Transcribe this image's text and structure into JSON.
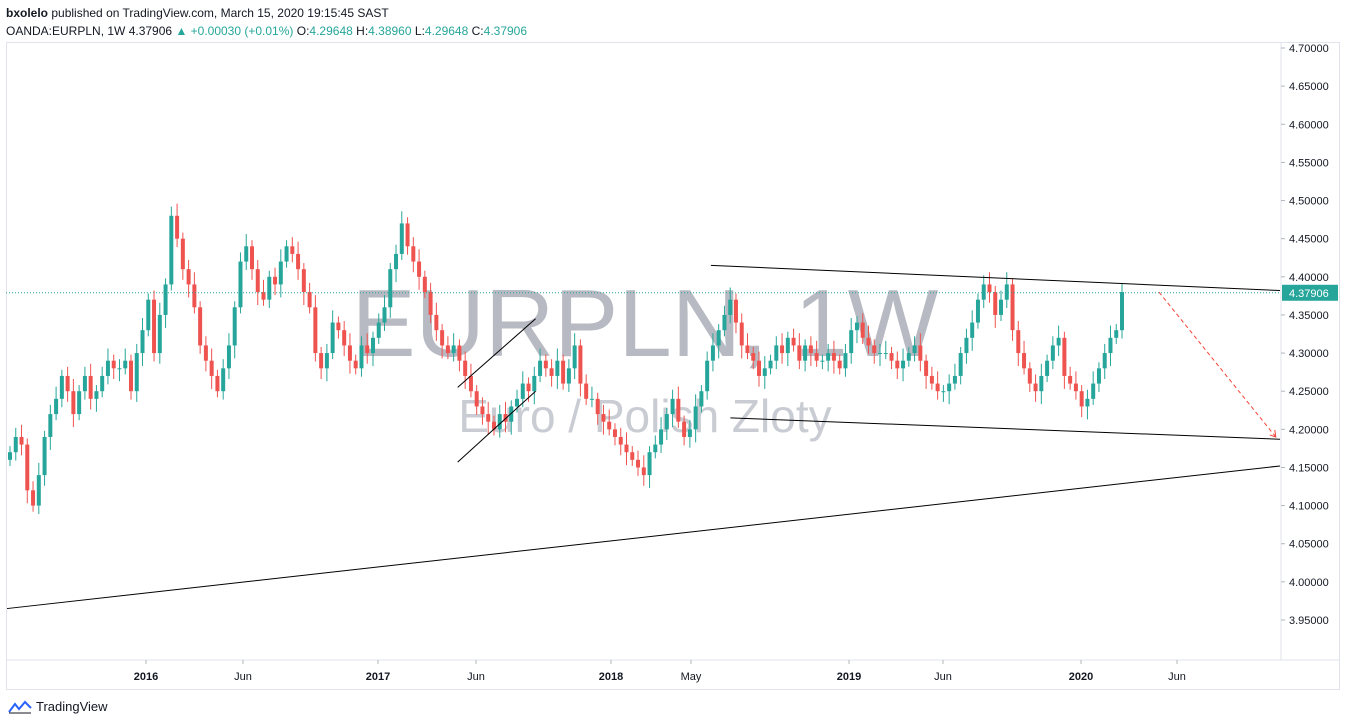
{
  "header": {
    "publisher": "bxolelo",
    "published_text": "published on TradingView.com, March 15, 2020 19:15:45 SAST",
    "symbol": "OANDA:EURPLN, 1W",
    "last": "4.37906",
    "change": "▲ +0.00030 (+0.01%)",
    "o_label": "O:",
    "o_val": "4.29648",
    "h_label": "H:",
    "h_val": "4.38960",
    "l_label": "L:",
    "l_val": "4.29648",
    "c_label": "C:",
    "c_val": "4.37906"
  },
  "footer": {
    "brand": "TradingView"
  },
  "colors": {
    "up": "#26a69a",
    "down": "#ef5350",
    "line": "#000000",
    "projection": "#f44336",
    "price_line": "#26a69a"
  },
  "chart_data": {
    "type": "candlestick",
    "title": "EURPLN, 1W",
    "subtitle": "Euro / Polish Zloty",
    "ylim": [
      3.91,
      4.71
    ],
    "y_ticks": [
      "4.70000",
      "4.65000",
      "4.60000",
      "4.55000",
      "4.50000",
      "4.45000",
      "4.40000",
      "4.35000",
      "4.30000",
      "4.25000",
      "4.20000",
      "4.15000",
      "4.10000",
      "4.05000",
      "4.00000",
      "3.95000"
    ],
    "x_ticks": [
      {
        "label": "2016",
        "bold": true
      },
      {
        "label": "Jun",
        "bold": false
      },
      {
        "label": "2017",
        "bold": true
      },
      {
        "label": "Jun",
        "bold": false
      },
      {
        "label": "2018",
        "bold": true
      },
      {
        "label": "May",
        "bold": false
      },
      {
        "label": "2019",
        "bold": true
      },
      {
        "label": "Jun",
        "bold": false
      },
      {
        "label": "2020",
        "bold": true
      },
      {
        "label": "Jun",
        "bold": false
      }
    ],
    "last_price": 4.37906,
    "last_price_label": "4.37906",
    "grid": false,
    "close_series": [
      4.17,
      4.19,
      4.18,
      4.12,
      4.1,
      4.14,
      4.19,
      4.22,
      4.24,
      4.27,
      4.25,
      4.22,
      4.25,
      4.27,
      4.24,
      4.25,
      4.27,
      4.29,
      4.28,
      4.28,
      4.29,
      4.25,
      4.3,
      4.33,
      4.37,
      4.3,
      4.35,
      4.39,
      4.48,
      4.45,
      4.41,
      4.39,
      4.36,
      4.31,
      4.29,
      4.27,
      4.25,
      4.28,
      4.31,
      4.36,
      4.42,
      4.44,
      4.41,
      4.38,
      4.37,
      4.4,
      4.39,
      4.42,
      4.44,
      4.43,
      4.41,
      4.38,
      4.36,
      4.3,
      4.28,
      4.3,
      4.34,
      4.33,
      4.31,
      4.29,
      4.28,
      4.31,
      4.3,
      4.32,
      4.34,
      4.36,
      4.41,
      4.43,
      4.47,
      4.44,
      4.42,
      4.4,
      4.38,
      4.35,
      4.33,
      4.31,
      4.3,
      4.31,
      4.29,
      4.27,
      4.25,
      4.23,
      4.22,
      4.21,
      4.2,
      4.22,
      4.21,
      4.23,
      4.24,
      4.26,
      4.25,
      4.27,
      4.29,
      4.28,
      4.27,
      4.29,
      4.26,
      4.28,
      4.31,
      4.26,
      4.24,
      4.24,
      4.22,
      4.21,
      4.2,
      4.19,
      4.18,
      4.17,
      4.16,
      4.15,
      4.14,
      4.17,
      4.18,
      4.2,
      4.22,
      4.24,
      4.21,
      4.19,
      4.2,
      4.23,
      4.25,
      4.29,
      4.31,
      4.33,
      4.35,
      4.37,
      4.34,
      4.31,
      4.3,
      4.29,
      4.27,
      4.28,
      4.29,
      4.31,
      4.3,
      4.32,
      4.31,
      4.29,
      4.31,
      4.3,
      4.29,
      4.29,
      4.3,
      4.29,
      4.28,
      4.3,
      4.33,
      4.34,
      4.32,
      4.31,
      4.3,
      4.3,
      4.3,
      4.29,
      4.28,
      4.29,
      4.3,
      4.31,
      4.29,
      4.27,
      4.26,
      4.25,
      4.25,
      4.26,
      4.27,
      4.3,
      4.32,
      4.34,
      4.37,
      4.39,
      4.38,
      4.35,
      4.37,
      4.39,
      4.33,
      4.3,
      4.28,
      4.26,
      4.25,
      4.27,
      4.29,
      4.31,
      4.32,
      4.27,
      4.26,
      4.25,
      4.23,
      4.24,
      4.26,
      4.28,
      4.3,
      4.32,
      4.33,
      4.38
    ],
    "trendlines": [
      {
        "name": "upper-resistance",
        "from": {
          "x": "2018-06",
          "y": 4.415
        },
        "to": {
          "x": "2020-12",
          "y": 4.382
        }
      },
      {
        "name": "lower-support",
        "from": {
          "x": "2018-07",
          "y": 4.215
        },
        "to": {
          "x": "2020-12",
          "y": 4.187
        }
      },
      {
        "name": "long-term-support",
        "from": {
          "x": "2015-05",
          "y": 3.965
        },
        "to": {
          "x": "2020-12",
          "y": 4.152
        }
      },
      {
        "name": "channel-lower",
        "from": {
          "x": "2017-05",
          "y": 4.157
        },
        "to": {
          "x": "2017-09",
          "y": 4.25
        }
      },
      {
        "name": "channel-upper",
        "from": {
          "x": "2017-05",
          "y": 4.255
        },
        "to": {
          "x": "2017-09",
          "y": 4.345
        }
      }
    ],
    "projection": {
      "from": {
        "x": "2020-05",
        "y": 4.38
      },
      "to": {
        "x": "2020-11",
        "y": 4.19
      }
    }
  }
}
